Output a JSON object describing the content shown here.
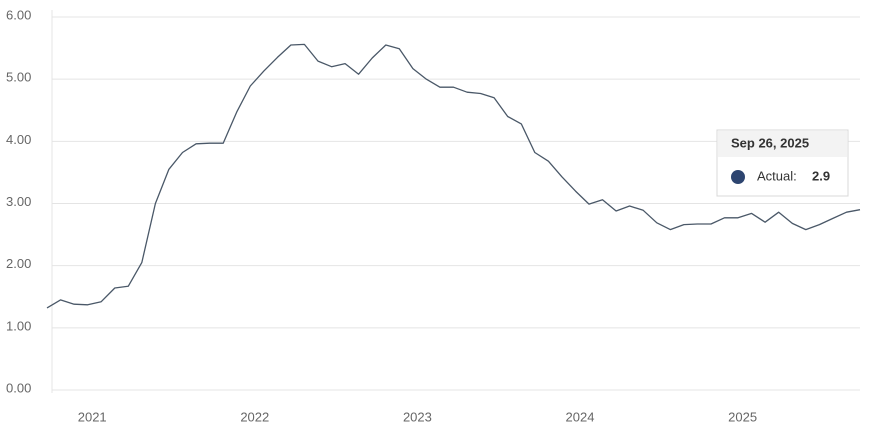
{
  "chart_data": {
    "type": "line",
    "categories": [
      null,
      null,
      null,
      null,
      "2021",
      null,
      null,
      null,
      null,
      null,
      null,
      null,
      null,
      null,
      null,
      null,
      "2022",
      null,
      null,
      null,
      null,
      null,
      null,
      null,
      null,
      null,
      null,
      null,
      "2023",
      null,
      null,
      null,
      null,
      null,
      null,
      null,
      null,
      null,
      null,
      null,
      "2024",
      null,
      null,
      null,
      null,
      null,
      null,
      null,
      null,
      null,
      null,
      null,
      "2025",
      null,
      null,
      null,
      null,
      null,
      null,
      null,
      null
    ],
    "values": [
      1.32,
      1.45,
      1.38,
      1.37,
      1.42,
      1.64,
      1.67,
      2.05,
      3.0,
      3.55,
      3.82,
      3.96,
      3.97,
      3.97,
      4.47,
      4.89,
      5.13,
      5.35,
      5.55,
      5.56,
      5.29,
      5.2,
      5.25,
      5.08,
      5.34,
      5.55,
      5.49,
      5.17,
      5.0,
      4.87,
      4.87,
      4.79,
      4.77,
      4.7,
      4.4,
      4.28,
      3.82,
      3.68,
      3.43,
      3.2,
      2.99,
      3.06,
      2.88,
      2.96,
      2.89,
      2.69,
      2.58,
      2.66,
      2.67,
      2.67,
      2.77,
      2.77,
      2.84,
      2.7,
      2.86,
      2.68,
      2.58,
      2.66,
      2.76,
      2.86,
      2.9
    ],
    "color": "#4a5868",
    "ylim": [
      0,
      6
    ],
    "yticks": [
      {
        "value": 0,
        "label": "0.00"
      },
      {
        "value": 1,
        "label": "1.00"
      },
      {
        "value": 2,
        "label": "2.00"
      },
      {
        "value": 3,
        "label": "3.00"
      },
      {
        "value": 4,
        "label": "4.00"
      },
      {
        "value": 5,
        "label": "5.00"
      },
      {
        "value": 6,
        "label": "6.00"
      }
    ],
    "grid": true,
    "tooltip": {
      "date": "Sep 26, 2025",
      "label": "Actual:",
      "value": 2.9,
      "color": "#2d4570"
    }
  }
}
